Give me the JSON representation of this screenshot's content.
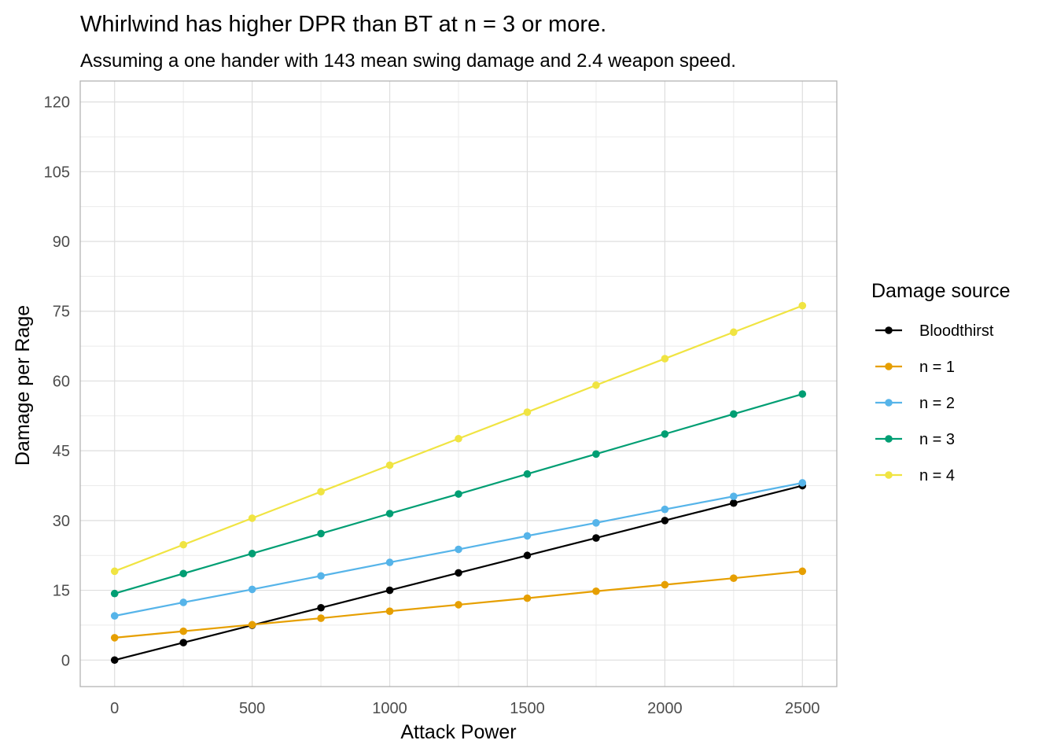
{
  "chart_data": {
    "type": "line",
    "title": "Whirlwind has higher DPR than BT at n = 3 or more.",
    "subtitle": "Assuming a one hander with 143 mean swing damage and 2.4 weapon speed.",
    "xlabel": "Attack Power",
    "ylabel": "Damage per Rage",
    "xlim": [
      -125,
      2625
    ],
    "ylim": [
      -5.7,
      124.5
    ],
    "x_ticks": [
      0,
      500,
      1000,
      1500,
      2000,
      2500
    ],
    "y_ticks": [
      0,
      15,
      30,
      45,
      60,
      75,
      90,
      105,
      120
    ],
    "grid": true,
    "legend": {
      "title": "Damage source",
      "position": "right"
    },
    "x": [
      0,
      250,
      500,
      750,
      1000,
      1250,
      1500,
      1750,
      2000,
      2250,
      2500
    ],
    "series": [
      {
        "name": "Bloodthirst",
        "color": "#000000",
        "values": [
          0,
          3.75,
          7.5,
          11.25,
          15,
          18.75,
          22.5,
          26.25,
          30,
          33.75,
          37.5
        ]
      },
      {
        "name": "n = 1",
        "color": "#E69F00",
        "values": [
          4.8,
          6.2,
          7.6,
          9.0,
          10.5,
          11.9,
          13.3,
          14.8,
          16.2,
          17.6,
          19.1
        ]
      },
      {
        "name": "n = 2",
        "color": "#56B4E9",
        "values": [
          9.5,
          12.4,
          15.2,
          18.1,
          21.0,
          23.8,
          26.7,
          29.5,
          32.4,
          35.2,
          38.1
        ]
      },
      {
        "name": "n = 3",
        "color": "#009E73",
        "values": [
          14.3,
          18.6,
          22.9,
          27.2,
          31.5,
          35.7,
          40.0,
          44.3,
          48.6,
          52.9,
          57.2
        ]
      },
      {
        "name": "n = 4",
        "color": "#F0E442",
        "values": [
          19.1,
          24.8,
          30.5,
          36.2,
          41.9,
          47.6,
          53.3,
          59.1,
          64.8,
          70.5,
          76.2
        ]
      }
    ]
  }
}
